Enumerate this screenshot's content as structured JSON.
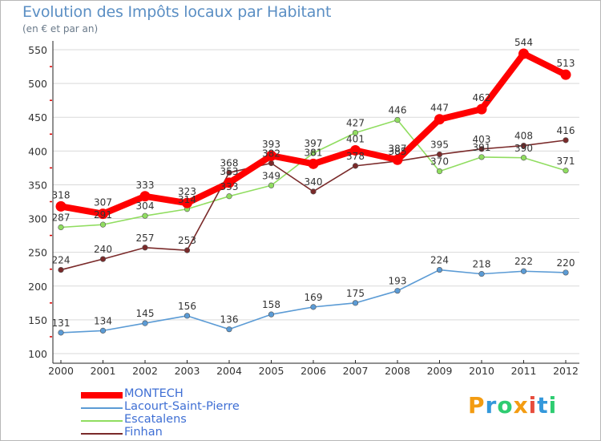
{
  "header": {
    "title": "Evolution des Impôts locaux par Habitant",
    "subtitle": "(en € et par an)"
  },
  "logo": {
    "text": "Proxiti",
    "colors": [
      "#f39c12",
      "#3498db",
      "#2ecc71",
      "#f39c12",
      "#e74c3c",
      "#3498db",
      "#2ecc71"
    ]
  },
  "chart_data": {
    "type": "line",
    "title": "Evolution des Impôts locaux par Habitant",
    "subtitle": "(en € et par an)",
    "xlabel": "",
    "ylabel": "",
    "x": [
      "2000",
      "2001",
      "2002",
      "2003",
      "2004",
      "2005",
      "2006",
      "2007",
      "2008",
      "2009",
      "2010",
      "2011",
      "2012"
    ],
    "ylim": [
      100,
      550
    ],
    "yticks": [
      100,
      150,
      200,
      250,
      300,
      350,
      400,
      450,
      500,
      550
    ],
    "grid": "horizontal",
    "legend_position": "bottom-left",
    "series": [
      {
        "name": "MONTECH",
        "color": "#ff0000",
        "emphasis": true,
        "values": [
          318,
          307,
          333,
          323,
          353,
          393,
          381,
          401,
          387,
          447,
          462,
          544,
          513
        ]
      },
      {
        "name": "Lacourt-Saint-Pierre",
        "color": "#5b9bd5",
        "values": [
          131,
          134,
          145,
          156,
          136,
          158,
          169,
          175,
          193,
          224,
          218,
          222,
          220
        ]
      },
      {
        "name": "Escatalens",
        "color": "#90dd60",
        "values": [
          287,
          291,
          304,
          314,
          333,
          349,
          397,
          427,
          446,
          370,
          391,
          390,
          371
        ]
      },
      {
        "name": "Finhan",
        "color": "#7a2a2a",
        "values": [
          224,
          240,
          257,
          253,
          368,
          382,
          340,
          378,
          385,
          395,
          403,
          408,
          416
        ]
      }
    ]
  }
}
